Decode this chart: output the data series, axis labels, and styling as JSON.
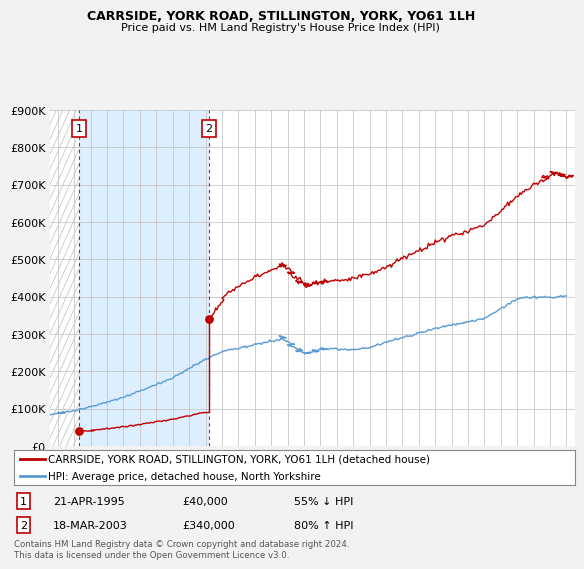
{
  "title": "CARRSIDE, YORK ROAD, STILLINGTON, YORK, YO61 1LH",
  "subtitle": "Price paid vs. HM Land Registry's House Price Index (HPI)",
  "ylim": [
    0,
    900000
  ],
  "yticks": [
    0,
    100000,
    200000,
    300000,
    400000,
    500000,
    600000,
    700000,
    800000,
    900000
  ],
  "ytick_labels": [
    "£0",
    "£100K",
    "£200K",
    "£300K",
    "£400K",
    "£500K",
    "£600K",
    "£700K",
    "£800K",
    "£900K"
  ],
  "xlim_start": 1993.5,
  "xlim_end": 2025.5,
  "hpi_color": "#5b9bd5",
  "price_color": "#c00000",
  "background_color": "#f2f2f2",
  "plot_background": "#ffffff",
  "hatch_color": "#d8d8d8",
  "shade_color": "#ddeeff",
  "grid_color": "#c8c8c8",
  "sale1_x": 1995.3,
  "sale1_y": 40000,
  "sale2_x": 2003.2,
  "sale2_y": 340000,
  "sale1_date": "21-APR-1995",
  "sale1_price": "£40,000",
  "sale1_hpi": "55% ↓ HPI",
  "sale2_date": "18-MAR-2003",
  "sale2_price": "£340,000",
  "sale2_hpi": "80% ↑ HPI",
  "legend_line1": "CARRSIDE, YORK ROAD, STILLINGTON, YORK, YO61 1LH (detached house)",
  "legend_line2": "HPI: Average price, detached house, North Yorkshire",
  "footer": "Contains HM Land Registry data © Crown copyright and database right 2024.\nThis data is licensed under the Open Government Licence v3.0."
}
